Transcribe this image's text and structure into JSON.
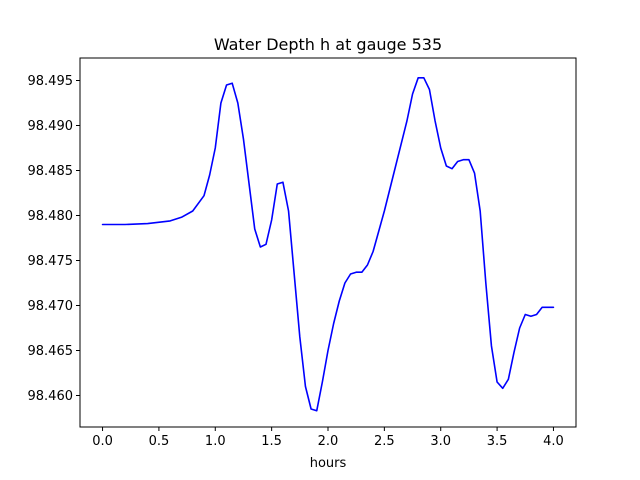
{
  "chart_data": {
    "type": "line",
    "title": "Water Depth h at gauge 535",
    "xlabel": "hours",
    "ylabel": "",
    "xlim": [
      -0.2,
      4.2
    ],
    "ylim": [
      98.4565,
      98.4975
    ],
    "xticks": [
      0.0,
      0.5,
      1.0,
      1.5,
      2.0,
      2.5,
      3.0,
      3.5,
      4.0
    ],
    "xtick_labels": [
      "0.0",
      "0.5",
      "1.0",
      "1.5",
      "2.0",
      "2.5",
      "3.0",
      "3.5",
      "4.0"
    ],
    "yticks": [
      98.46,
      98.465,
      98.47,
      98.475,
      98.48,
      98.485,
      98.49,
      98.495
    ],
    "ytick_labels": [
      "98.460",
      "98.465",
      "98.470",
      "98.475",
      "98.480",
      "98.485",
      "98.490",
      "98.495"
    ],
    "grid": false,
    "series": [
      {
        "name": "",
        "color": "#0000ff",
        "x": [
          0.0,
          0.2,
          0.4,
          0.6,
          0.7,
          0.8,
          0.9,
          0.95,
          1.0,
          1.05,
          1.1,
          1.15,
          1.2,
          1.25,
          1.3,
          1.35,
          1.4,
          1.45,
          1.5,
          1.55,
          1.6,
          1.65,
          1.7,
          1.75,
          1.8,
          1.85,
          1.9,
          1.95,
          2.0,
          2.05,
          2.1,
          2.15,
          2.2,
          2.25,
          2.3,
          2.35,
          2.4,
          2.5,
          2.6,
          2.7,
          2.75,
          2.8,
          2.85,
          2.9,
          2.95,
          3.0,
          3.05,
          3.1,
          3.15,
          3.2,
          3.25,
          3.3,
          3.35,
          3.4,
          3.45,
          3.5,
          3.55,
          3.6,
          3.65,
          3.7,
          3.75,
          3.8,
          3.85,
          3.9,
          3.95,
          4.0
        ],
        "y": [
          98.479,
          98.479,
          98.4791,
          98.4794,
          98.4798,
          98.4805,
          98.4822,
          98.4845,
          98.4875,
          98.4925,
          98.4945,
          98.4947,
          98.4925,
          98.4885,
          98.4835,
          98.4785,
          98.4765,
          98.4768,
          98.4795,
          98.4835,
          98.4837,
          98.4805,
          98.4735,
          98.4665,
          98.461,
          98.4585,
          98.4583,
          98.4615,
          98.465,
          98.468,
          98.4705,
          98.4725,
          98.4735,
          98.4737,
          98.4737,
          98.4745,
          98.476,
          98.4805,
          98.4855,
          98.4905,
          98.4935,
          98.4953,
          98.4953,
          98.494,
          98.4905,
          98.4875,
          98.4855,
          98.4852,
          98.486,
          98.4862,
          98.4862,
          98.4847,
          98.4805,
          98.4725,
          98.4655,
          98.4615,
          98.4608,
          98.4618,
          98.4648,
          98.4675,
          98.469,
          98.4688,
          98.469,
          98.4698,
          98.4698,
          98.4698
        ]
      }
    ]
  }
}
